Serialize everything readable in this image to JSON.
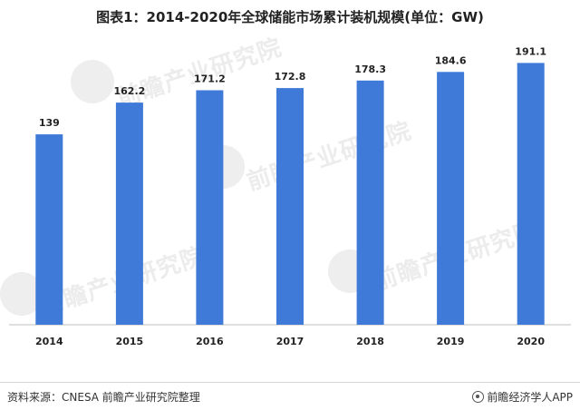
{
  "header": {
    "title": "图表1：2014-2020年全球储能市场累计装机规模(单位：GW)"
  },
  "watermark": {
    "text": "前瞻产业研究院"
  },
  "footer": {
    "source": "资料来源：CNESA 前瞻产业研究院整理",
    "brand": "前瞻经济学人APP"
  },
  "chart_data": {
    "type": "bar",
    "title": "图表1：2014-2020年全球储能市场累计装机规模(单位：GW)",
    "categories": [
      "2014",
      "2015",
      "2016",
      "2017",
      "2018",
      "2019",
      "2020"
    ],
    "values": [
      139,
      162.2,
      171.2,
      172.8,
      178.3,
      184.6,
      191.1
    ],
    "value_labels": [
      "139",
      "162.2",
      "171.2",
      "172.8",
      "178.3",
      "184.6",
      "191.1"
    ],
    "ylim": [
      0,
      200
    ],
    "xlabel": "",
    "ylabel": "",
    "grid": false,
    "legend": "none",
    "bar_color": "#3f7ad8",
    "axis_color": "#bfbfbf"
  }
}
